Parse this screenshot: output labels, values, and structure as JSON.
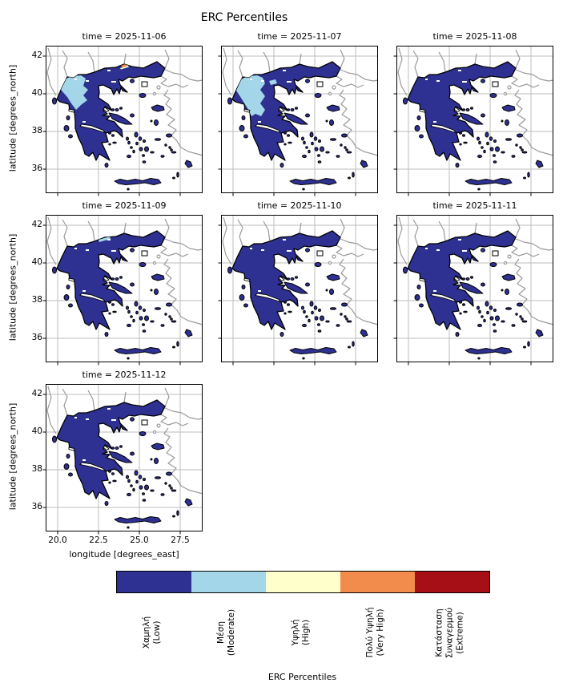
{
  "figure_title": "ERC Percentiles",
  "facets": [
    {
      "label": "time = 2025-11-06",
      "date": "2025-11-06",
      "overlays": [
        "moderate_nw_large",
        "alert_yellow",
        "alert_orange"
      ]
    },
    {
      "label": "time = 2025-11-07",
      "date": "2025-11-07",
      "overlays": [
        "moderate_west_extended",
        "moderate_blob_east"
      ]
    },
    {
      "label": "time = 2025-11-08",
      "date": "2025-11-08",
      "overlays": []
    },
    {
      "label": "time = 2025-11-09",
      "date": "2025-11-09",
      "overlays": [
        "moderate_top_sliver"
      ]
    },
    {
      "label": "time = 2025-11-10",
      "date": "2025-11-10",
      "overlays": []
    },
    {
      "label": "time = 2025-11-11",
      "date": "2025-11-11",
      "overlays": []
    },
    {
      "label": "time = 2025-11-12",
      "date": "2025-11-12",
      "overlays": []
    }
  ],
  "axes": {
    "xlabel": "longitude [degrees_east]",
    "ylabel": "latitude [degrees_north]",
    "xticks": [
      "20.0",
      "22.5",
      "25.0",
      "27.5"
    ],
    "yticks": [
      "42",
      "40",
      "38",
      "36"
    ]
  },
  "colorbar": {
    "label": "ERC Percentiles",
    "categories": [
      {
        "lines": [
          "Χαμηλή",
          "(Low)"
        ],
        "name_en": "Low",
        "color": "#2e3192"
      },
      {
        "lines": [
          "Μέση",
          "(Moderate)"
        ],
        "name_en": "Moderate",
        "color": "#a2d6e8"
      },
      {
        "lines": [
          "Υψηλή",
          "(High)"
        ],
        "name_en": "High",
        "color": "#ffffcc"
      },
      {
        "lines": [
          "Πολύ Υψηλή",
          "(Very High)"
        ],
        "name_en": "Very High",
        "color": "#f28c4d"
      },
      {
        "lines": [
          "Κατάσταση",
          "Συναγερμού",
          "(Extreme)"
        ],
        "name_en": "Extreme",
        "color": "#a50f15"
      }
    ]
  },
  "colors": {
    "grid": "#bdbdbd",
    "neighbor": "#9a9a9a",
    "coast": "#000000",
    "sea": "#ffffff"
  },
  "chart_data": {
    "type": "heatmap",
    "subtype": "faceted categorical raster map of Greece (fire-danger ERC percentile classes)",
    "title": "ERC Percentiles",
    "facet_variable": "time",
    "facets": [
      "2025-11-06",
      "2025-11-07",
      "2025-11-08",
      "2025-11-09",
      "2025-11-10",
      "2025-11-11",
      "2025-11-12"
    ],
    "grid_layout": "3 columns x 3 rows, 7 panels used",
    "x": {
      "label": "longitude [degrees_east]",
      "range": [
        19.3,
        28.9
      ],
      "ticks": [
        20.0,
        22.5,
        25.0,
        27.5
      ]
    },
    "y": {
      "label": "latitude [degrees_north]",
      "range": [
        34.7,
        42.5
      ],
      "ticks": [
        36,
        38,
        40,
        42
      ]
    },
    "grid": true,
    "legend_position": "bottom horizontal colorbar",
    "categories": [
      {
        "class": "Χαμηλή (Low)",
        "color": "#2e3192"
      },
      {
        "class": "Μέση (Moderate)",
        "color": "#a2d6e8"
      },
      {
        "class": "Υψηλή (High)",
        "color": "#ffffcc"
      },
      {
        "class": "Πολύ Υψηλή (Very High)",
        "color": "#f28c4d"
      },
      {
        "class": "Κατάσταση Συναγερμού (Extreme)",
        "color": "#a50f15"
      }
    ],
    "facet_summary": [
      {
        "date": "2025-11-06",
        "dominant_class": "Low",
        "moderate_area": "northwest Greece (Epirus / western Macedonia)",
        "high_very_high_area": "tiny yellow-orange spot on the northern border near lon 24.3"
      },
      {
        "date": "2025-11-07",
        "dominant_class": "Low",
        "moderate_area": "western and north-central mainland Greece (largest extent)"
      },
      {
        "date": "2025-11-08",
        "dominant_class": "Low",
        "moderate_area": "none"
      },
      {
        "date": "2025-11-09",
        "dominant_class": "Low",
        "moderate_area": "tiny sliver on the northern border"
      },
      {
        "date": "2025-11-10",
        "dominant_class": "Low",
        "moderate_area": "none"
      },
      {
        "date": "2025-11-11",
        "dominant_class": "Low",
        "moderate_area": "none"
      },
      {
        "date": "2025-11-12",
        "dominant_class": "Low",
        "moderate_area": "none"
      }
    ]
  }
}
